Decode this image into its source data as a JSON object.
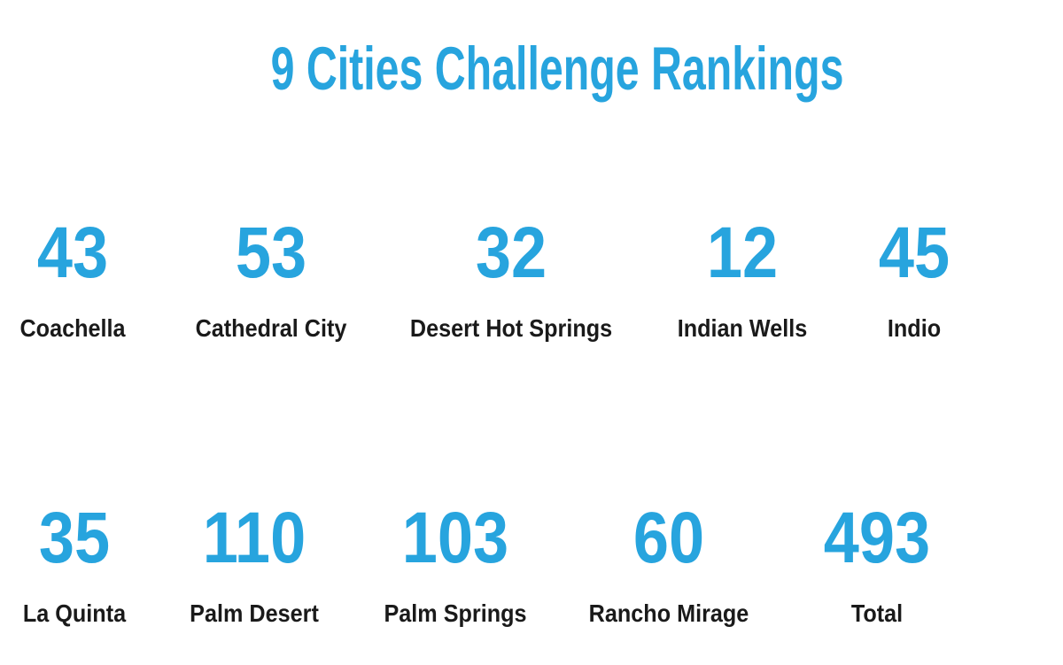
{
  "title": "9 Cities Challenge Rankings",
  "colors": {
    "accent": "#27A4DE",
    "label_text": "#1A1A1A",
    "background": "#FFFFFF"
  },
  "chart_data": {
    "type": "table",
    "title": "9 Cities Challenge Rankings",
    "categories": [
      "Coachella",
      "Cathedral City",
      "Desert Hot Springs",
      "Indian Wells",
      "Indio",
      "La Quinta",
      "Palm Desert",
      "Palm Springs",
      "Rancho Mirage",
      "Total"
    ],
    "values": [
      43,
      53,
      32,
      12,
      45,
      35,
      110,
      103,
      60,
      493
    ],
    "layout": {
      "rows": 2,
      "columns_per_row": 5,
      "legend": "none",
      "grid": "off",
      "value_position": "above-label"
    }
  }
}
